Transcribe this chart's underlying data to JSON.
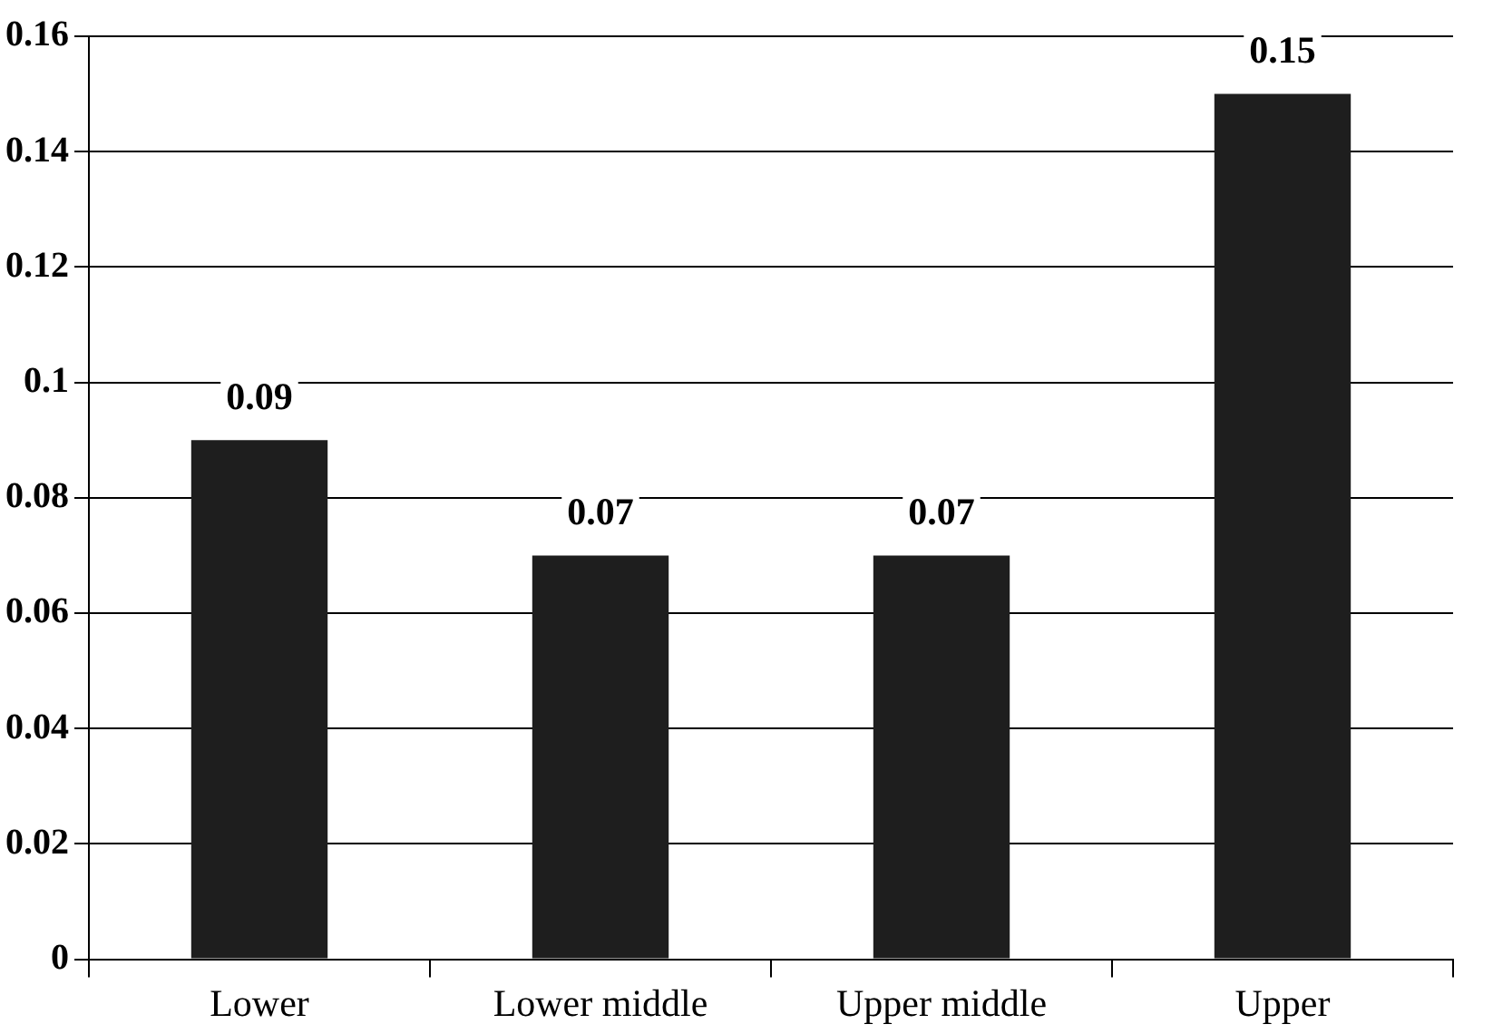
{
  "chart_data": {
    "type": "bar",
    "categories": [
      "Lower",
      "Lower middle",
      "Upper middle",
      "Upper"
    ],
    "values": [
      0.09,
      0.07,
      0.07,
      0.15
    ],
    "color": "#1e1e1e",
    "ylim": [
      0,
      0.16
    ],
    "yticks": [
      0,
      0.02,
      0.04,
      0.06,
      0.08,
      0.1,
      0.12,
      0.14,
      0.16
    ],
    "grid": "y",
    "data_labels": true,
    "legend": false
  }
}
